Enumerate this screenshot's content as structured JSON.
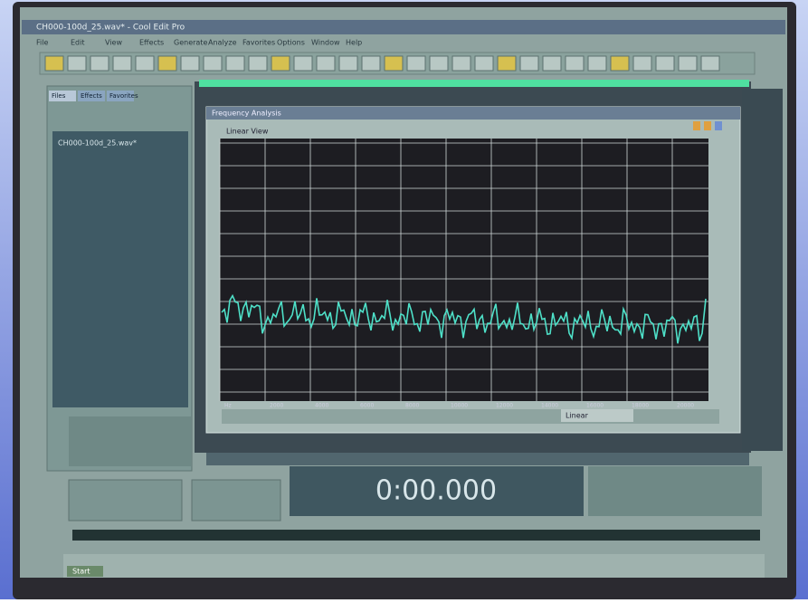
{
  "window": {
    "title": "CH000-100d_25.wav* - Cool Edit Pro",
    "menu": [
      "File",
      "Edit",
      "View",
      "Effects",
      "Generate",
      "Analyze",
      "Favorites",
      "Options",
      "Window",
      "Help"
    ]
  },
  "files_panel": {
    "tabs": [
      "Files",
      "Effects",
      "Favorites"
    ],
    "items": [
      "CH000-100d_25.wav*"
    ]
  },
  "analysis": {
    "title": "Frequency Analysis",
    "view": "Linear View",
    "mode": "Linear",
    "x_labels": [
      "Hz",
      "2000",
      "4000",
      "6000",
      "8000",
      "10000",
      "12000",
      "14000",
      "16000",
      "18000",
      "20000"
    ]
  },
  "transport": {
    "time": "0:00.000"
  },
  "taskbar": {
    "start": "Start"
  }
}
